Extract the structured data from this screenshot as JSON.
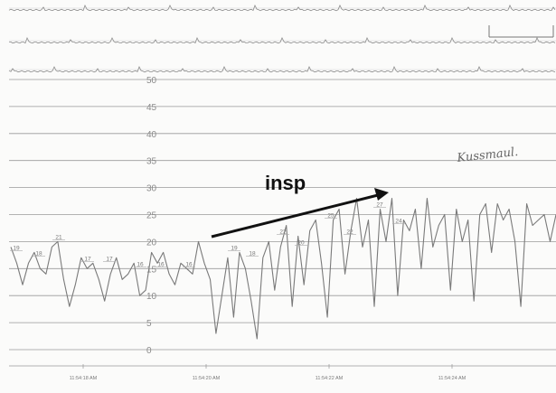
{
  "chart_data": {
    "type": "line",
    "title": "",
    "xlabel": "",
    "ylabel": "",
    "ylim": [
      0,
      50
    ],
    "yticks": [
      "0",
      "5",
      "10",
      "15",
      "20",
      "25",
      "30",
      "35",
      "40",
      "45",
      "50"
    ],
    "grid": true,
    "xticks": [
      "11:54:18 AM",
      "11:54:20 AM",
      "11:54:22 AM",
      "11:54:24 AM"
    ],
    "series": [
      {
        "values": [
          19,
          16,
          12,
          16,
          18,
          15,
          14,
          19,
          20,
          13,
          8,
          12,
          17,
          15,
          16,
          13,
          9,
          14,
          17,
          13,
          14,
          16,
          10,
          11,
          18,
          16,
          18,
          14,
          12,
          16,
          15,
          14,
          20,
          16,
          13,
          3,
          10,
          17,
          6,
          18,
          15,
          9,
          2,
          17,
          20,
          11,
          19,
          23,
          8,
          21,
          12,
          22,
          24,
          16,
          6,
          24,
          26,
          14,
          22,
          28,
          19,
          24,
          8,
          26,
          20,
          28,
          10,
          24,
          22,
          26,
          15,
          28,
          19,
          23,
          25,
          11,
          26,
          20,
          24,
          9,
          25,
          27,
          18,
          27,
          24,
          26,
          20,
          8,
          27,
          23,
          24,
          25,
          20,
          25
        ]
      }
    ],
    "point_labels": [
      "19",
      "18",
      "21",
      "17",
      "17",
      "16",
      "16",
      "16",
      "19",
      "18",
      "22",
      "20",
      "25",
      "22",
      "27",
      "24"
    ]
  },
  "annotations": {
    "arrow_label": "insp",
    "handwritten_note": "Kussmaul."
  },
  "colors": {
    "trace": "#7a7a7a",
    "gridline": "#9a9a9a",
    "arrow": "#111111"
  }
}
